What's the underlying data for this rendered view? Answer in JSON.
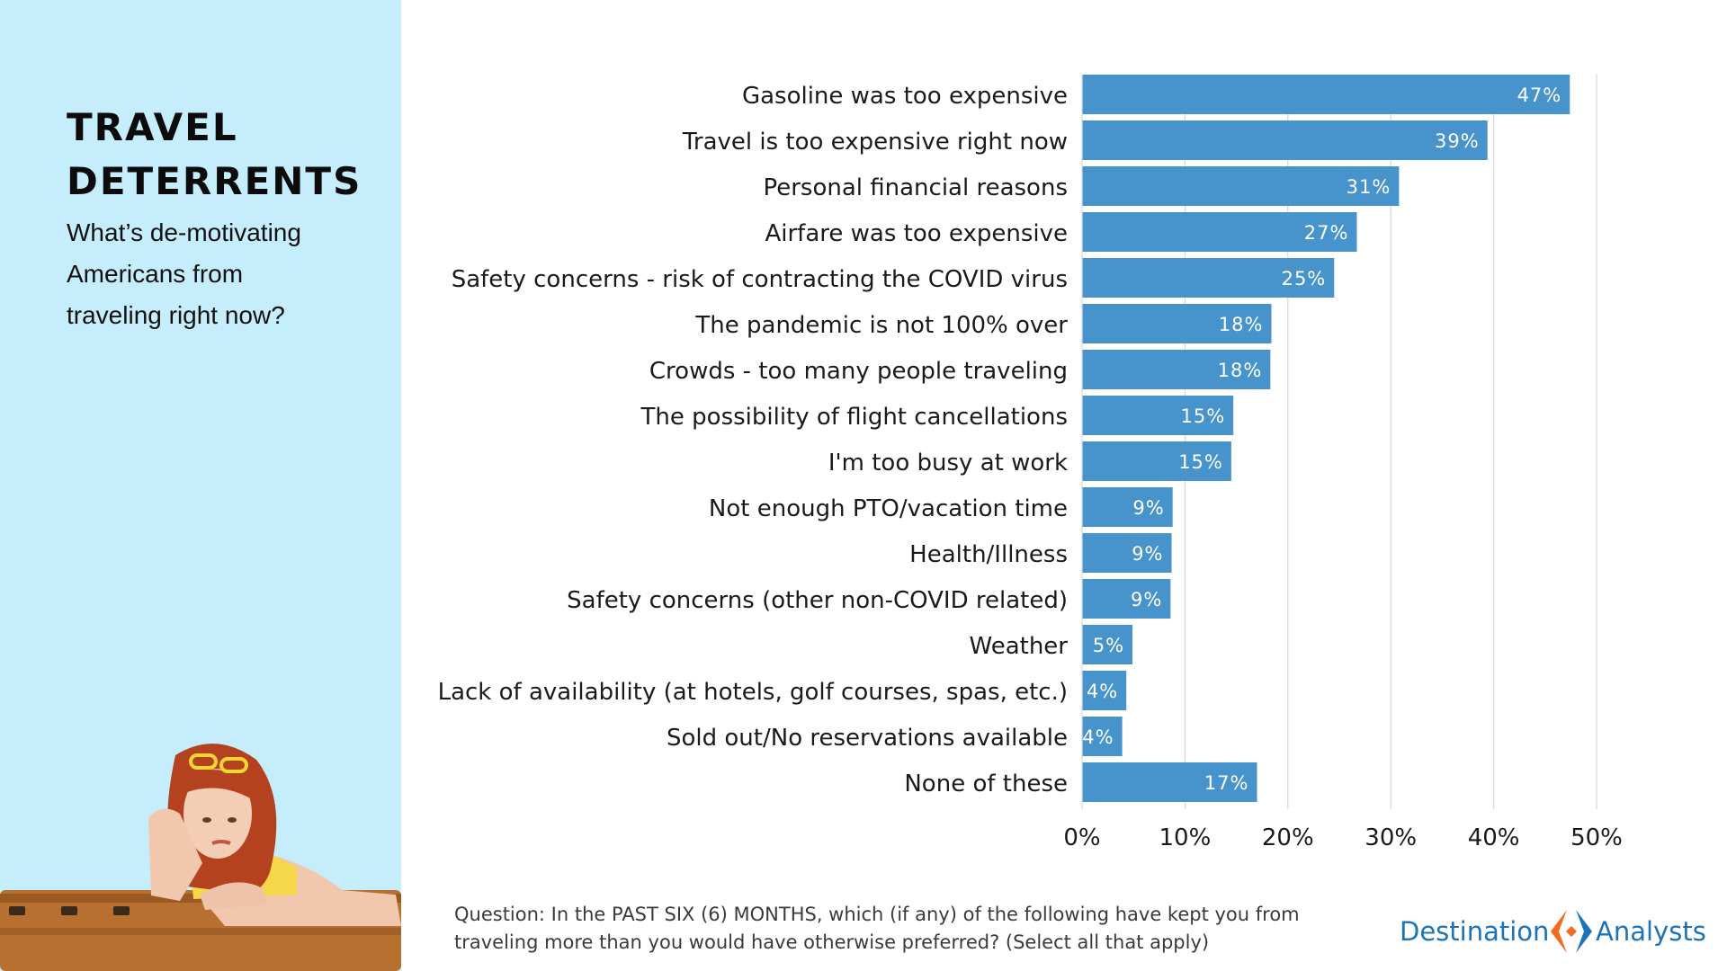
{
  "header": {
    "title_lines": [
      "TRAVEL",
      "DETERRENTS"
    ],
    "subtitle_lines": [
      "What’s de-motivating",
      "Americans from",
      "traveling right now?"
    ]
  },
  "colors": {
    "bar": "#4793cc",
    "panel": "#c5edfb",
    "grid": "#d9d9d9",
    "logo_blue": "#1c73b8",
    "logo_orange": "#f26b21"
  },
  "chart_data": {
    "type": "bar",
    "orientation": "horizontal",
    "categories": [
      "Gasoline was too expensive",
      "Travel is too expensive right now",
      "Personal financial reasons",
      "Airfare was too expensive",
      "Safety concerns - risk of contracting the COVID virus",
      "The pandemic is not 100% over",
      "Crowds - too many people traveling",
      "The possibility of flight cancellations",
      "I'm too busy at work",
      "Not enough PTO/vacation time",
      "Health/Illness",
      "Safety concerns (other non-COVID related)",
      "Weather",
      "Lack of availability (at hotels, golf courses, spas, etc.)",
      "Sold out/No reservations available",
      "None of these"
    ],
    "values": [
      47.4,
      39.4,
      30.8,
      26.7,
      24.5,
      18.4,
      18.3,
      14.7,
      14.5,
      8.8,
      8.7,
      8.6,
      4.9,
      4.3,
      3.9,
      17.0
    ],
    "data_labels": [
      "47%",
      "39%",
      "31%",
      "27%",
      "25%",
      "18%",
      "18%",
      "15%",
      "15%",
      "9%",
      "9%",
      "9%",
      "5%",
      "4%",
      "4%",
      "17%"
    ],
    "xlim": [
      0,
      50
    ],
    "x_ticks": [
      0,
      10,
      20,
      30,
      40,
      50
    ],
    "x_tick_labels": [
      "0%",
      "10%",
      "20%",
      "30%",
      "40%",
      "50%"
    ],
    "grid": true
  },
  "footnote_lines": [
    "Question: In the PAST SIX (6) MONTHS, which (if any) of the following have kept you from",
    "traveling more than you would have otherwise preferred? (Select all that apply)"
  ],
  "logo": {
    "word1": "Destination",
    "word2": "Analysts"
  }
}
